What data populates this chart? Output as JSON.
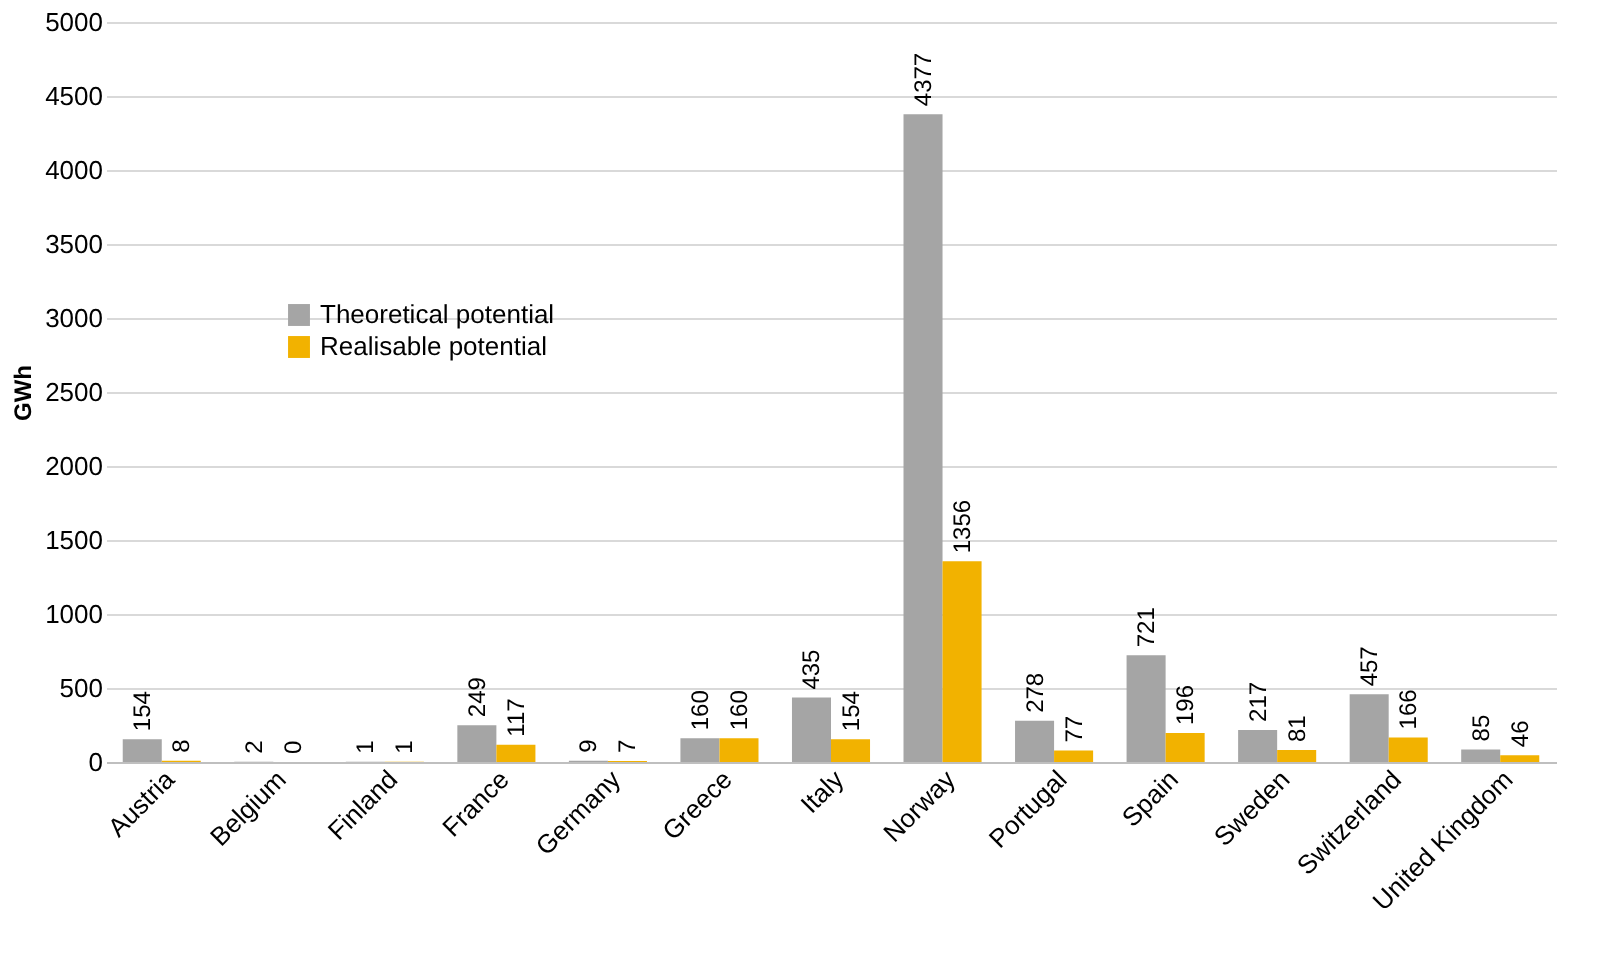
{
  "chart_data": {
    "type": "bar",
    "ylabel": "GWh",
    "categories": [
      "Austria",
      "Belgium",
      "Finland",
      "France",
      "Germany",
      "Greece",
      "Italy",
      "Norway",
      "Portugal",
      "Spain",
      "Sweden",
      "Switzerland",
      "United Kingdom"
    ],
    "series": [
      {
        "name": "Theoretical potential",
        "color": "#a5a5a5",
        "values": [
          154,
          2,
          1,
          249,
          9,
          160,
          435,
          4377,
          278,
          721,
          217,
          457,
          85
        ]
      },
      {
        "name": "Realisable potential",
        "color": "#f2b200",
        "values": [
          8,
          0,
          1,
          117,
          7,
          160,
          154,
          1356,
          77,
          196,
          81,
          166,
          46
        ]
      }
    ],
    "ylim": [
      0,
      5000
    ],
    "yticks": [
      0,
      500,
      1000,
      1500,
      2000,
      2500,
      3000,
      3500,
      4000,
      4500,
      5000
    ],
    "grid": "y",
    "legend": "top left",
    "data_labels": true
  }
}
